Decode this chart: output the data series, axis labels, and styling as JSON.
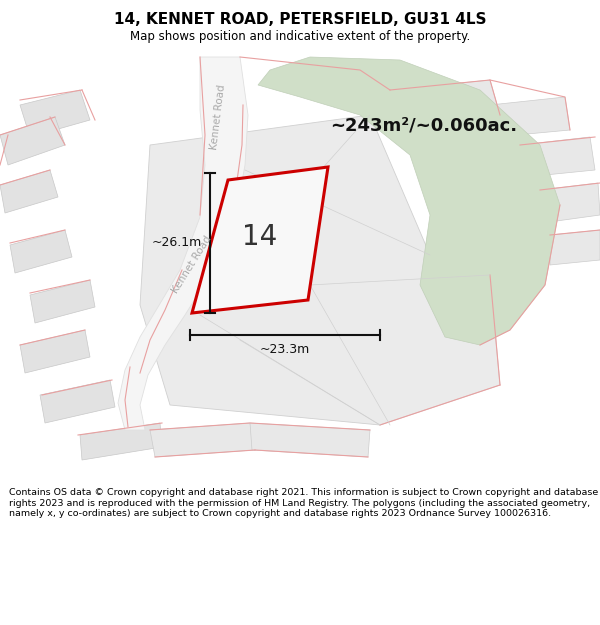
{
  "title": "14, KENNET ROAD, PETERSFIELD, GU31 4LS",
  "subtitle": "Map shows position and indicative extent of the property.",
  "area_text": "~243m²/~0.060ac.",
  "dim_vertical": "~26.1m",
  "dim_horizontal": "~23.3m",
  "house_number": "14",
  "footer": "Contains OS data © Crown copyright and database right 2021. This information is subject to Crown copyright and database rights 2023 and is reproduced with the permission of HM Land Registry. The polygons (including the associated geometry, namely x, y co-ordinates) are subject to Crown copyright and database rights 2023 Ordnance Survey 100026316.",
  "bg_color": "#ffffff",
  "green_fill": "#d8e4d0",
  "parcel_fill": "#e8e8e8",
  "parcel_edge": "#c8c8c8",
  "road_fill": "#f0f0f0",
  "road_edge": "#d8d8d8",
  "highlight_fill": "#f5f5f5",
  "highlight_edge": "#cc0000",
  "pink_line": "#e8a0a0",
  "dim_color": "#111111",
  "text_color": "#333333",
  "road_label_color": "#aaaaaa"
}
